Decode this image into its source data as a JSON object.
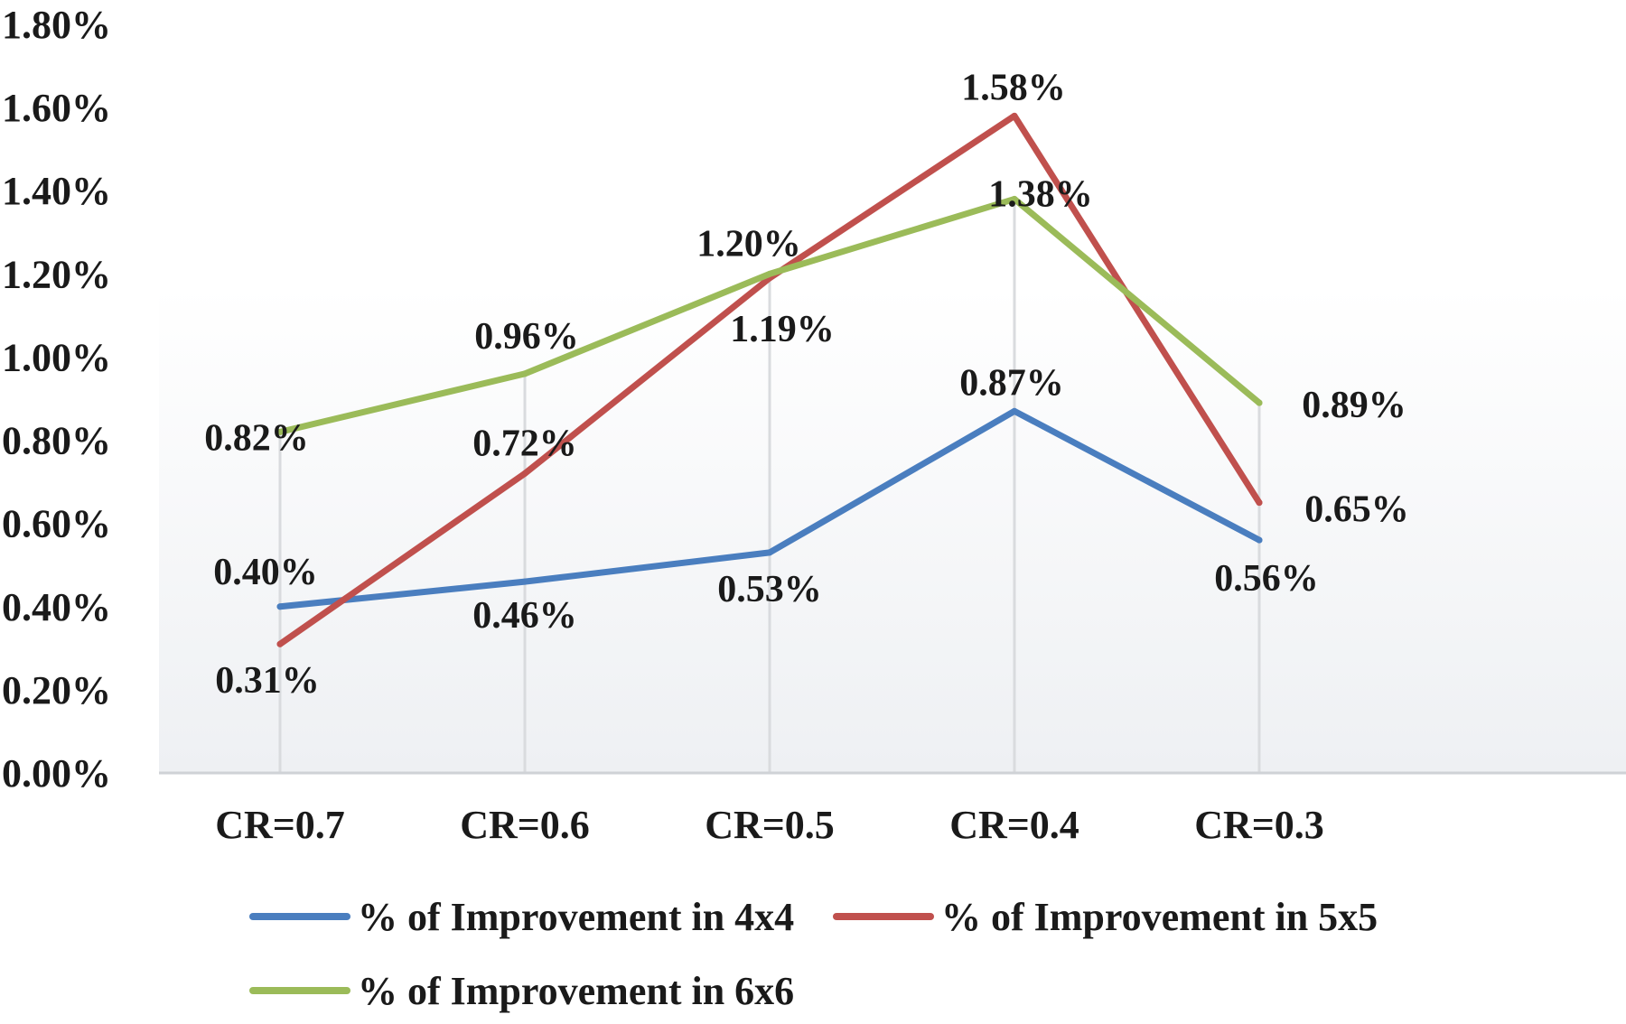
{
  "chart_data": {
    "type": "line",
    "title": "",
    "xlabel": "",
    "ylabel": "",
    "categories": [
      "CR=0.7",
      "CR=0.6",
      "CR=0.5",
      "CR=0.4",
      "CR=0.3"
    ],
    "ylim": [
      0,
      1.8
    ],
    "y_ticks": [
      0.0,
      0.2,
      0.4,
      0.6,
      0.8,
      1.0,
      1.2,
      1.4,
      1.6,
      1.8
    ],
    "y_tick_labels": [
      "0.00%",
      "0.20%",
      "0.40%",
      "0.60%",
      "0.80%",
      "1.00%",
      "1.20%",
      "1.40%",
      "1.60%",
      "1.80%"
    ],
    "grid": "vertical",
    "legend_position": "bottom",
    "series": [
      {
        "name": "% of Improvement in 4x4",
        "color": "#4a7ebf",
        "values": [
          0.4,
          0.46,
          0.53,
          0.87,
          0.56
        ],
        "labels": [
          "0.40%",
          "0.46%",
          "0.53%",
          "0.87%",
          "0.56%"
        ]
      },
      {
        "name": "% of Improvement in 5x5",
        "color": "#c0504d",
        "values": [
          0.31,
          0.72,
          1.19,
          1.58,
          0.65
        ],
        "labels": [
          "0.31%",
          "0.72%",
          "1.19%",
          "1.58%",
          "0.65%"
        ]
      },
      {
        "name": "% of Improvement in 6x6",
        "color": "#9bbb59",
        "values": [
          0.82,
          0.96,
          1.2,
          1.38,
          0.89
        ],
        "labels": [
          "0.82%",
          "0.96%",
          "1.20%",
          "1.38%",
          "0.89%"
        ]
      }
    ]
  }
}
